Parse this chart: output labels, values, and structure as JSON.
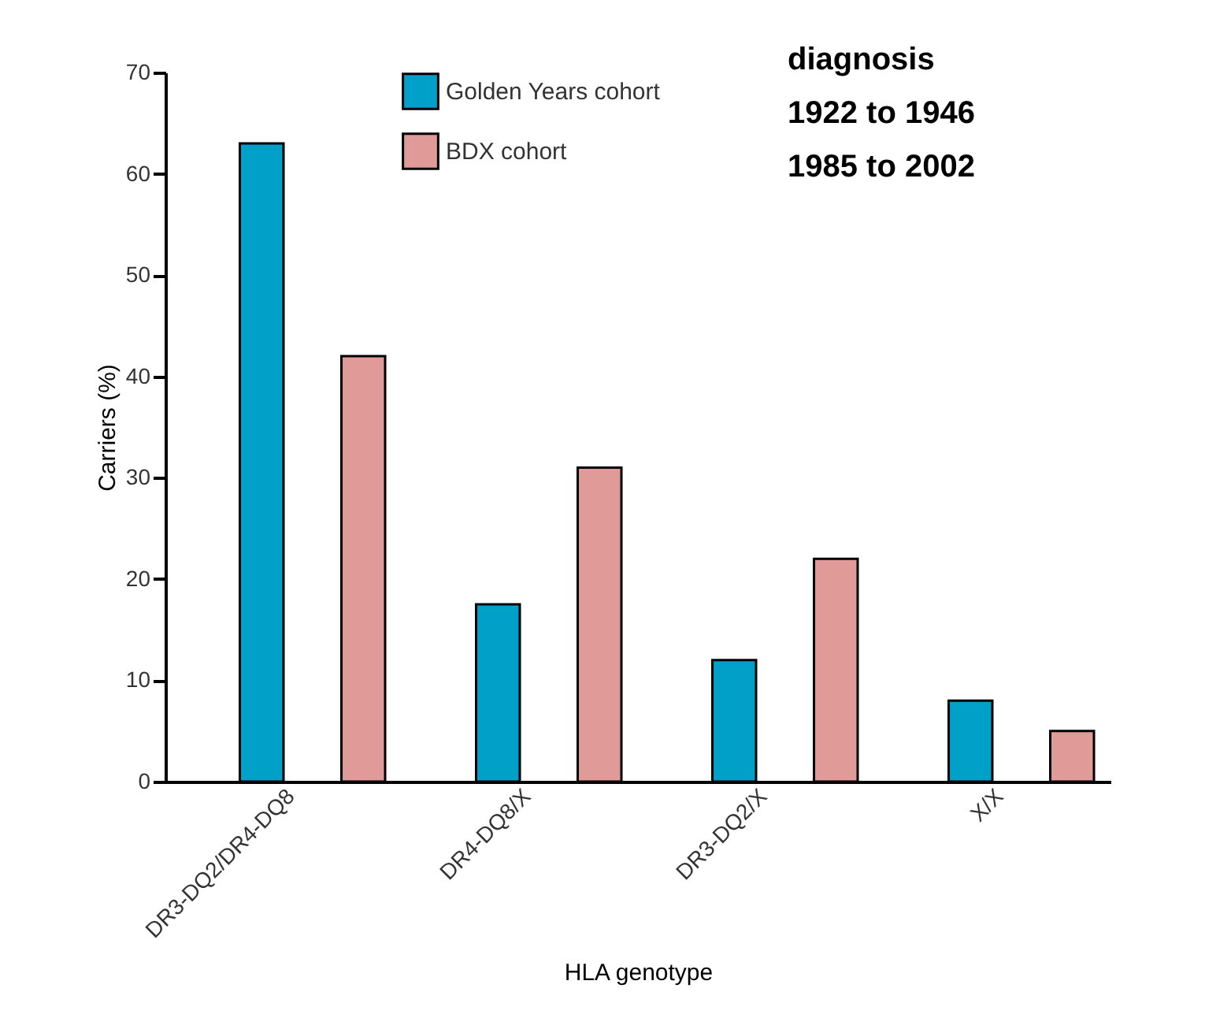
{
  "chart_data": {
    "type": "bar",
    "categories": [
      "DR3-DQ2/DR4-DQ8",
      "DR4-DQ8/X",
      "DR3-DQ2/X",
      "X/X"
    ],
    "series": [
      {
        "name": "Golden Years cohort",
        "color": "#00a0c8",
        "values": [
          63,
          17.5,
          12,
          8
        ]
      },
      {
        "name": "BDX cohort",
        "color": "#e09a98",
        "values": [
          42,
          31,
          22,
          5
        ]
      }
    ],
    "xlabel": "HLA genotype",
    "ylabel": "Carriers (%)",
    "ylim": [
      0,
      70
    ],
    "yticks": [
      0,
      10,
      20,
      30,
      40,
      50,
      60,
      70
    ],
    "legend": "top",
    "annotations": [
      "diagnosis",
      "1922 to 1946",
      "1985 to 2002"
    ]
  }
}
